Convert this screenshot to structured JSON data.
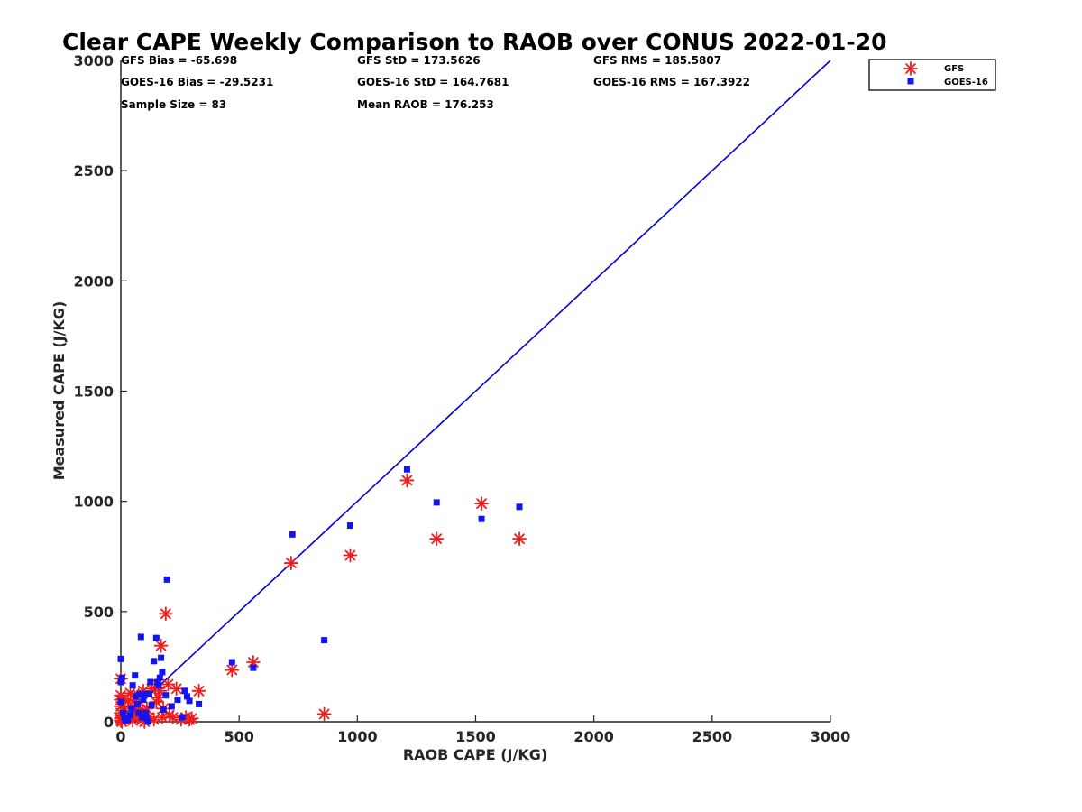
{
  "chart_data": {
    "type": "scatter",
    "title": "Clear CAPE Weekly Comparison to RAOB over CONUS 2022-01-20",
    "xlabel": "RAOB CAPE (J/KG)",
    "ylabel": "Measured CAPE (J/KG)",
    "xlim": [
      0,
      3000
    ],
    "ylim": [
      0,
      3000
    ],
    "xticks": [
      "0",
      "500",
      "1000",
      "1500",
      "2000",
      "2500",
      "3000"
    ],
    "yticks": [
      "0",
      "500",
      "1000",
      "1500",
      "2000",
      "2500",
      "3000"
    ],
    "grid": false,
    "legend_position": "top-right",
    "stats": [
      "GFS Bias = -65.698",
      "GFS StD = 173.5626",
      "GFS RMS = 185.5807",
      "GOES-16 Bias = -29.5231",
      "GOES-16 StD = 164.7681",
      "GOES-16 RMS = 167.3922",
      "Sample Size = 83",
      "Mean RAOB = 176.253"
    ],
    "reference_line": {
      "x": [
        0,
        3000
      ],
      "y": [
        0,
        3000
      ],
      "color": "#0000dd"
    },
    "series": [
      {
        "name": "GFS",
        "marker": "asterisk",
        "color": "#ee1c1c",
        "points": [
          [
            0,
            195
          ],
          [
            0,
            120
          ],
          [
            0,
            100
          ],
          [
            0,
            70
          ],
          [
            0,
            40
          ],
          [
            0,
            15
          ],
          [
            0,
            5
          ],
          [
            5,
            0
          ],
          [
            10,
            30
          ],
          [
            15,
            60
          ],
          [
            20,
            10
          ],
          [
            30,
            95
          ],
          [
            40,
            130
          ],
          [
            50,
            5
          ],
          [
            55,
            40
          ],
          [
            60,
            100
          ],
          [
            65,
            75
          ],
          [
            70,
            25
          ],
          [
            75,
            120
          ],
          [
            80,
            55
          ],
          [
            90,
            10
          ],
          [
            95,
            140
          ],
          [
            100,
            0
          ],
          [
            110,
            60
          ],
          [
            120,
            20
          ],
          [
            130,
            150
          ],
          [
            140,
            10
          ],
          [
            150,
            90
          ],
          [
            155,
            170
          ],
          [
            160,
            110
          ],
          [
            165,
            140
          ],
          [
            170,
            345
          ],
          [
            175,
            20
          ],
          [
            180,
            60
          ],
          [
            190,
            490
          ],
          [
            200,
            170
          ],
          [
            205,
            30
          ],
          [
            220,
            20
          ],
          [
            235,
            150
          ],
          [
            255,
            10
          ],
          [
            275,
            20
          ],
          [
            290,
            10
          ],
          [
            300,
            15
          ],
          [
            330,
            140
          ],
          [
            470,
            235
          ],
          [
            560,
            270
          ],
          [
            720,
            720
          ],
          [
            860,
            35
          ],
          [
            970,
            755
          ],
          [
            1210,
            1095
          ],
          [
            1335,
            830
          ],
          [
            1525,
            990
          ],
          [
            1685,
            830
          ]
        ]
      },
      {
        "name": "GOES-16",
        "marker": "square",
        "color": "#1414f0",
        "points": [
          [
            0,
            285
          ],
          [
            0,
            180
          ],
          [
            5,
            200
          ],
          [
            0,
            90
          ],
          [
            10,
            40
          ],
          [
            15,
            20
          ],
          [
            20,
            5
          ],
          [
            30,
            10
          ],
          [
            40,
            30
          ],
          [
            45,
            60
          ],
          [
            50,
            165
          ],
          [
            60,
            210
          ],
          [
            65,
            115
          ],
          [
            70,
            80
          ],
          [
            75,
            40
          ],
          [
            80,
            125
          ],
          [
            85,
            385
          ],
          [
            90,
            20
          ],
          [
            95,
            100
          ],
          [
            100,
            125
          ],
          [
            105,
            40
          ],
          [
            110,
            15
          ],
          [
            115,
            0
          ],
          [
            120,
            125
          ],
          [
            125,
            180
          ],
          [
            130,
            75
          ],
          [
            140,
            275
          ],
          [
            150,
            380
          ],
          [
            155,
            180
          ],
          [
            160,
            165
          ],
          [
            165,
            200
          ],
          [
            170,
            290
          ],
          [
            175,
            225
          ],
          [
            180,
            55
          ],
          [
            190,
            120
          ],
          [
            195,
            645
          ],
          [
            215,
            70
          ],
          [
            240,
            100
          ],
          [
            260,
            20
          ],
          [
            270,
            140
          ],
          [
            280,
            115
          ],
          [
            290,
            95
          ],
          [
            330,
            80
          ],
          [
            470,
            270
          ],
          [
            560,
            245
          ],
          [
            725,
            850
          ],
          [
            860,
            370
          ],
          [
            970,
            890
          ],
          [
            1210,
            1145
          ],
          [
            1335,
            995
          ],
          [
            1525,
            920
          ],
          [
            1685,
            975
          ]
        ]
      }
    ]
  }
}
